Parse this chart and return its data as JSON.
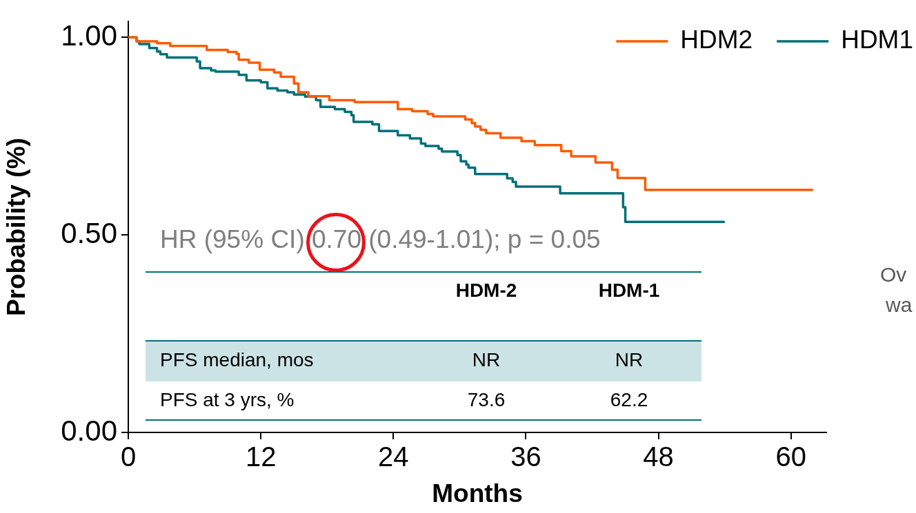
{
  "chart_data": {
    "type": "step",
    "xlabel": "Months",
    "ylabel": "Probability (%)",
    "xlim": [
      0,
      63.2
    ],
    "xticks": [
      0,
      12,
      24,
      36,
      48,
      60
    ],
    "ylim": [
      0,
      1.04
    ],
    "yticks": [
      {
        "value": 0,
        "label": "0.00"
      },
      {
        "value": 0.5,
        "label": "0.50"
      },
      {
        "value": 1,
        "label": "1.00"
      }
    ],
    "grid": false,
    "legend": "top right",
    "marker": "none",
    "series": [
      {
        "name": "HDM2",
        "color": "#ff5a00",
        "x": [
          0,
          0.75,
          2.6,
          3.8,
          7.1,
          9.0,
          9.8,
          10.0,
          10.9,
          11.9,
          13.2,
          13.8,
          15.0,
          15.4,
          16.3,
          18.2,
          20.5,
          24.4,
          25.7,
          27.1,
          27.6,
          30.5,
          31.1,
          31.4,
          31.9,
          32.4,
          33.7,
          35.6,
          36.8,
          39.2,
          40.1,
          42.3,
          43.8,
          44.3,
          46.8,
          62.0
        ],
        "values": [
          1.0,
          0.99,
          0.985,
          0.978,
          0.968,
          0.963,
          0.958,
          0.943,
          0.936,
          0.918,
          0.911,
          0.9,
          0.883,
          0.861,
          0.851,
          0.841,
          0.836,
          0.818,
          0.813,
          0.806,
          0.8,
          0.792,
          0.783,
          0.774,
          0.766,
          0.757,
          0.746,
          0.737,
          0.727,
          0.712,
          0.699,
          0.683,
          0.665,
          0.644,
          0.614,
          0.614
        ]
      },
      {
        "name": "HDM1",
        "color": "#007078",
        "x": [
          0,
          0.75,
          1.0,
          1.9,
          2.6,
          2.9,
          3.5,
          6.2,
          6.5,
          7.5,
          7.9,
          10.0,
          10.7,
          12.0,
          12.6,
          13.5,
          14.4,
          15.0,
          16.0,
          17.0,
          17.4,
          18.7,
          19.6,
          20.2,
          20.4,
          22.1,
          22.7,
          24.4,
          25.5,
          26.5,
          26.9,
          28.1,
          28.4,
          29.8,
          30.1,
          30.6,
          30.8,
          31.4,
          34.3,
          34.8,
          35.1,
          39.1,
          44.8,
          45.0,
          54.0
        ],
        "values": [
          1.0,
          0.99,
          0.983,
          0.973,
          0.964,
          0.957,
          0.949,
          0.939,
          0.922,
          0.916,
          0.913,
          0.905,
          0.891,
          0.886,
          0.871,
          0.865,
          0.861,
          0.855,
          0.85,
          0.841,
          0.824,
          0.818,
          0.811,
          0.803,
          0.786,
          0.78,
          0.763,
          0.752,
          0.744,
          0.731,
          0.725,
          0.718,
          0.711,
          0.702,
          0.686,
          0.678,
          0.67,
          0.654,
          0.643,
          0.634,
          0.622,
          0.605,
          0.57,
          0.533,
          0.533
        ]
      }
    ],
    "annotations": [
      "HR (95% CI) 0.70 (0.49-1.01); p = 0.05",
      "HDM-2",
      "HDM-1",
      "PFS median, mos",
      "NR",
      "NR",
      "PFS at 3 yrs, %",
      "73.6",
      "62.2",
      "Ov",
      "wa"
    ]
  }
}
